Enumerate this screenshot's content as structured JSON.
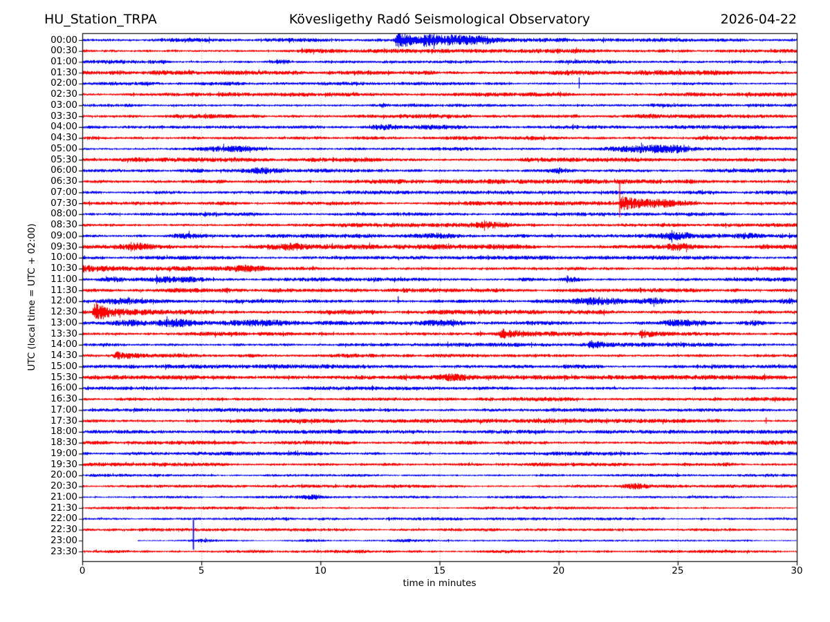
{
  "chart_data": {
    "type": "line",
    "subtype": "helicorder-dayplot",
    "title_left": "HU_Station_TRPA",
    "title_center": "Kövesligethy Radó Seismological Observatory",
    "title_right": "2026-04-22",
    "xlabel": "time in minutes",
    "ylabel": "UTC (local time = UTC + 02:00)",
    "x_range": [
      0,
      30
    ],
    "x_ticks": [
      0,
      5,
      10,
      15,
      20,
      25,
      30
    ],
    "grid_x": [
      5,
      10,
      15,
      20,
      25
    ],
    "grid_style": "dotted",
    "trace_colors": {
      "even_rows": "#0000ff",
      "odd_rows": "#ff0000"
    },
    "rows": [
      {
        "label": "00:00",
        "color": "#0000ff",
        "noise": 2.0,
        "events": [
          {
            "k": "burst",
            "t": 13.15,
            "a": 13,
            "d": 0.8
          },
          {
            "k": "burst",
            "t": 14.3,
            "a": 4.5,
            "d": 1.4
          },
          {
            "k": "hump",
            "t": 15.9,
            "a": 3.2,
            "w": 0.7
          },
          {
            "k": "hump",
            "t": 16.9,
            "a": 2.0,
            "w": 0.4
          }
        ]
      },
      {
        "label": "00:30",
        "color": "#ff0000",
        "noise": 2.2,
        "events": []
      },
      {
        "label": "01:00",
        "color": "#0000ff",
        "noise": 2.0,
        "events": [
          {
            "k": "hump",
            "t": 8.3,
            "a": 2.4,
            "w": 0.3
          }
        ]
      },
      {
        "label": "01:30",
        "color": "#ff0000",
        "noise": 2.6,
        "events": []
      },
      {
        "label": "02:00",
        "color": "#0000ff",
        "noise": 1.9,
        "events": [
          {
            "k": "spike",
            "t": 20.85,
            "u": 9,
            "dn": 7
          }
        ]
      },
      {
        "label": "02:30",
        "color": "#ff0000",
        "noise": 2.3,
        "events": []
      },
      {
        "label": "03:00",
        "color": "#0000ff",
        "noise": 2.1,
        "events": []
      },
      {
        "label": "03:30",
        "color": "#ff0000",
        "noise": 2.4,
        "events": []
      },
      {
        "label": "04:00",
        "color": "#0000ff",
        "noise": 2.0,
        "events": [
          {
            "k": "hump",
            "t": 12.7,
            "a": 3.0,
            "w": 0.5
          },
          {
            "k": "hump",
            "t": 15.0,
            "a": 2.5,
            "w": 0.7
          }
        ]
      },
      {
        "label": "04:30",
        "color": "#ff0000",
        "noise": 2.3,
        "events": []
      },
      {
        "label": "05:00",
        "color": "#0000ff",
        "noise": 2.0,
        "events": [
          {
            "k": "hump",
            "t": 6.2,
            "a": 3.2,
            "w": 1.0
          },
          {
            "k": "hump",
            "t": 23.7,
            "a": 3.6,
            "w": 0.9
          },
          {
            "k": "hump",
            "t": 24.9,
            "a": 3.0,
            "w": 0.4
          },
          {
            "k": "spike",
            "t": 25.25,
            "u": 6,
            "dn": 5
          }
        ]
      },
      {
        "label": "05:30",
        "color": "#ff0000",
        "noise": 2.4,
        "events": []
      },
      {
        "label": "06:00",
        "color": "#0000ff",
        "noise": 2.1,
        "events": [
          {
            "k": "hump",
            "t": 7.6,
            "a": 2.6,
            "w": 0.4
          },
          {
            "k": "hump",
            "t": 20.0,
            "a": 2.4,
            "w": 0.3
          }
        ]
      },
      {
        "label": "06:30",
        "color": "#ff0000",
        "noise": 2.5,
        "events": []
      },
      {
        "label": "07:00",
        "color": "#0000ff",
        "noise": 2.0,
        "events": []
      },
      {
        "label": "07:30",
        "color": "#ff0000",
        "noise": 2.2,
        "events": [
          {
            "k": "vspike",
            "t": 22.55,
            "u": 32,
            "dn": 20
          },
          {
            "k": "burst",
            "t": 22.6,
            "a": 9,
            "d": 0.9
          },
          {
            "k": "hump",
            "t": 24.3,
            "a": 3.0,
            "w": 0.5
          }
        ]
      },
      {
        "label": "08:00",
        "color": "#0000ff",
        "noise": 1.9,
        "events": []
      },
      {
        "label": "08:30",
        "color": "#ff0000",
        "noise": 2.2,
        "events": [
          {
            "k": "hump",
            "t": 17.0,
            "a": 2.6,
            "w": 0.6
          }
        ]
      },
      {
        "label": "09:00",
        "color": "#0000ff",
        "noise": 2.1,
        "events": [
          {
            "k": "hump",
            "t": 4.35,
            "a": 3.2,
            "w": 0.4
          },
          {
            "k": "hump",
            "t": 14.9,
            "a": 3.0,
            "w": 0.5
          },
          {
            "k": "hump",
            "t": 24.8,
            "a": 3.4,
            "w": 0.6
          },
          {
            "k": "hump",
            "t": 27.9,
            "a": 2.4,
            "w": 0.3
          }
        ]
      },
      {
        "label": "09:30",
        "color": "#ff0000",
        "noise": 2.7,
        "events": [
          {
            "k": "hump",
            "t": 2.4,
            "a": 3.0,
            "w": 0.5
          },
          {
            "k": "hump",
            "t": 8.8,
            "a": 3.2,
            "w": 0.5
          },
          {
            "k": "hump",
            "t": 25.0,
            "a": 2.8,
            "w": 0.4
          }
        ]
      },
      {
        "label": "10:00",
        "color": "#0000ff",
        "noise": 2.2,
        "events": []
      },
      {
        "label": "10:30",
        "color": "#ff0000",
        "noise": 2.5,
        "events": [
          {
            "k": "burst",
            "t": 0.0,
            "a": 3.6,
            "d": 1.2
          },
          {
            "k": "hump",
            "t": 6.9,
            "a": 3.0,
            "w": 0.5
          }
        ]
      },
      {
        "label": "11:00",
        "color": "#0000ff",
        "noise": 2.1,
        "events": [
          {
            "k": "hump",
            "t": 1.3,
            "a": 2.6,
            "w": 0.4
          },
          {
            "k": "hump",
            "t": 3.35,
            "a": 3.4,
            "w": 0.45
          },
          {
            "k": "hump",
            "t": 4.5,
            "a": 2.8,
            "w": 0.4
          },
          {
            "k": "spike",
            "t": 20.35,
            "u": 6,
            "dn": 5
          },
          {
            "k": "hump",
            "t": 20.5,
            "a": 2.6,
            "w": 0.4
          }
        ]
      },
      {
        "label": "11:30",
        "color": "#ff0000",
        "noise": 2.4,
        "events": []
      },
      {
        "label": "12:00",
        "color": "#0000ff",
        "noise": 2.1,
        "events": [
          {
            "k": "hump",
            "t": 1.5,
            "a": 2.6,
            "w": 0.5
          },
          {
            "k": "spike",
            "t": 13.25,
            "u": 7,
            "dn": 3
          },
          {
            "k": "hump",
            "t": 21.6,
            "a": 3.0,
            "w": 0.8
          },
          {
            "k": "hump",
            "t": 24.0,
            "a": 2.4,
            "w": 0.4
          },
          {
            "k": "hump",
            "t": 27.6,
            "a": 2.6,
            "w": 0.4
          },
          {
            "k": "hump",
            "t": 29.7,
            "a": 2.6,
            "w": 0.3
          }
        ]
      },
      {
        "label": "12:30",
        "color": "#ff0000",
        "noise": 2.4,
        "events": [
          {
            "k": "burst",
            "t": 0.45,
            "a": 11,
            "d": 0.9
          }
        ]
      },
      {
        "label": "13:00",
        "color": "#0000ff",
        "noise": 2.2,
        "events": [
          {
            "k": "hump",
            "t": 2.0,
            "a": 2.6,
            "w": 0.5
          },
          {
            "k": "hump",
            "t": 3.9,
            "a": 3.6,
            "w": 0.5
          },
          {
            "k": "hump",
            "t": 7.4,
            "a": 3.0,
            "w": 0.8
          },
          {
            "k": "hump",
            "t": 15.2,
            "a": 3.4,
            "w": 0.7
          },
          {
            "k": "hump",
            "t": 25.2,
            "a": 3.8,
            "w": 0.7
          },
          {
            "k": "hump",
            "t": 28.2,
            "a": 2.6,
            "w": 0.4
          }
        ]
      },
      {
        "label": "13:30",
        "color": "#ff0000",
        "noise": 2.3,
        "events": [
          {
            "k": "burst",
            "t": 17.55,
            "a": 5.5,
            "d": 0.8
          },
          {
            "k": "burst",
            "t": 23.4,
            "a": 4.5,
            "d": 1.0
          }
        ]
      },
      {
        "label": "14:00",
        "color": "#0000ff",
        "noise": 2.1,
        "events": [
          {
            "k": "burst",
            "t": 21.25,
            "a": 6.5,
            "d": 0.7
          }
        ]
      },
      {
        "label": "14:30",
        "color": "#ff0000",
        "noise": 2.3,
        "events": [
          {
            "k": "burst",
            "t": 1.35,
            "a": 4.5,
            "d": 0.5
          }
        ]
      },
      {
        "label": "15:00",
        "color": "#0000ff",
        "noise": 2.2,
        "events": []
      },
      {
        "label": "15:30",
        "color": "#ff0000",
        "noise": 2.4,
        "events": [
          {
            "k": "hump",
            "t": 15.6,
            "a": 2.8,
            "w": 0.4
          }
        ]
      },
      {
        "label": "16:00",
        "color": "#0000ff",
        "noise": 2.0,
        "events": []
      },
      {
        "label": "16:30",
        "color": "#ff0000",
        "noise": 2.2,
        "events": []
      },
      {
        "label": "17:00",
        "color": "#0000ff",
        "noise": 2.0,
        "events": []
      },
      {
        "label": "17:30",
        "color": "#ff0000",
        "noise": 2.2,
        "events": [
          {
            "k": "spike",
            "t": 28.7,
            "u": 5,
            "dn": 4
          }
        ]
      },
      {
        "label": "18:00",
        "color": "#0000ff",
        "noise": 2.0,
        "events": []
      },
      {
        "label": "18:30",
        "color": "#ff0000",
        "noise": 2.3,
        "events": []
      },
      {
        "label": "19:00",
        "color": "#0000ff",
        "noise": 2.0,
        "events": []
      },
      {
        "label": "19:30",
        "color": "#ff0000",
        "noise": 2.1,
        "events": []
      },
      {
        "label": "20:00",
        "color": "#0000ff",
        "noise": 1.6,
        "events": []
      },
      {
        "label": "20:30",
        "color": "#ff0000",
        "noise": 1.7,
        "events": [
          {
            "k": "hump",
            "t": 23.3,
            "a": 2.4,
            "w": 0.5
          }
        ]
      },
      {
        "label": "21:00",
        "color": "#0000ff",
        "noise": 1.5,
        "events": [
          {
            "k": "hump",
            "t": 9.7,
            "a": 2.8,
            "w": 0.3
          }
        ]
      },
      {
        "label": "21:30",
        "color": "#ff0000",
        "noise": 1.6,
        "events": []
      },
      {
        "label": "22:00",
        "color": "#0000ff",
        "noise": 1.5,
        "events": []
      },
      {
        "label": "22:30",
        "color": "#ff0000",
        "noise": 1.6,
        "events": []
      },
      {
        "label": "23:00",
        "color": "#0000ff",
        "noise": 1.0,
        "start": 2.3,
        "events": [
          {
            "k": "vspike",
            "t": 2.3,
            "u": 97,
            "dn": 30,
            "halo": true
          },
          {
            "k": "vspike",
            "t": 4.65,
            "u": 30,
            "dn": 13,
            "halo": true
          },
          {
            "k": "hump",
            "t": 5.1,
            "a": 1.4,
            "w": 0.4
          },
          {
            "k": "hump",
            "t": 9.6,
            "a": 1.3,
            "w": 0.5
          },
          {
            "k": "hump",
            "t": 13.6,
            "a": 1.3,
            "w": 0.5
          }
        ]
      },
      {
        "label": "23:30",
        "color": "#ff0000",
        "noise": 1.8,
        "events": []
      }
    ]
  }
}
